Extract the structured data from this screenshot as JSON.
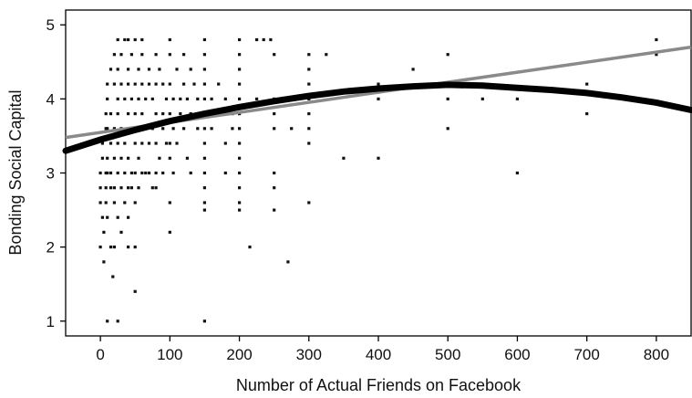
{
  "chart_data": {
    "type": "scatter",
    "title": "",
    "xlabel": "Number of Actual Friends on Facebook",
    "ylabel": "Bonding Social Capital",
    "xlim": [
      -50,
      850
    ],
    "ylim": [
      0.8,
      5.2
    ],
    "xticks": [
      0,
      100,
      200,
      300,
      400,
      500,
      600,
      700,
      800
    ],
    "yticks": [
      1,
      2,
      3,
      4,
      5
    ],
    "grid": false,
    "legend": "none",
    "colors": {
      "points": "#111111",
      "linear_fit": "#8a8a8a",
      "curve_fit": "#000000"
    },
    "series": [
      {
        "type": "scatter",
        "points": [
          [
            0,
            3.0
          ],
          [
            0,
            2.8
          ],
          [
            0,
            2.6
          ],
          [
            0,
            2.0
          ],
          [
            3,
            3.4
          ],
          [
            3,
            3.2
          ],
          [
            3,
            2.4
          ],
          [
            5,
            1.8
          ],
          [
            5,
            2.2
          ],
          [
            8,
            3.8
          ],
          [
            8,
            3.6
          ],
          [
            8,
            3.0
          ],
          [
            8,
            2.8
          ],
          [
            8,
            2.6
          ],
          [
            10,
            4.2
          ],
          [
            10,
            4.0
          ],
          [
            10,
            3.6
          ],
          [
            10,
            3.2
          ],
          [
            10,
            3.0
          ],
          [
            10,
            2.4
          ],
          [
            10,
            1.0
          ],
          [
            15,
            4.4
          ],
          [
            15,
            3.8
          ],
          [
            15,
            3.4
          ],
          [
            15,
            3.0
          ],
          [
            15,
            2.8
          ],
          [
            15,
            2.0
          ],
          [
            18,
            1.6
          ],
          [
            20,
            4.6
          ],
          [
            20,
            4.2
          ],
          [
            20,
            3.6
          ],
          [
            20,
            3.2
          ],
          [
            20,
            2.8
          ],
          [
            20,
            2.6
          ],
          [
            20,
            2.0
          ],
          [
            25,
            4.8
          ],
          [
            25,
            4.4
          ],
          [
            25,
            4.0
          ],
          [
            25,
            3.8
          ],
          [
            25,
            3.4
          ],
          [
            25,
            3.0
          ],
          [
            25,
            2.4
          ],
          [
            25,
            1.0
          ],
          [
            30,
            4.6
          ],
          [
            30,
            4.2
          ],
          [
            30,
            3.6
          ],
          [
            30,
            3.2
          ],
          [
            30,
            2.8
          ],
          [
            30,
            2.2
          ],
          [
            35,
            4.8
          ],
          [
            35,
            4.0
          ],
          [
            35,
            3.4
          ],
          [
            35,
            3.0
          ],
          [
            35,
            2.6
          ],
          [
            40,
            4.8
          ],
          [
            40,
            4.4
          ],
          [
            40,
            4.2
          ],
          [
            40,
            3.8
          ],
          [
            40,
            3.2
          ],
          [
            40,
            2.8
          ],
          [
            40,
            2.4
          ],
          [
            40,
            2.0
          ],
          [
            45,
            4.6
          ],
          [
            45,
            4.0
          ],
          [
            45,
            3.6
          ],
          [
            45,
            3.0
          ],
          [
            45,
            2.8
          ],
          [
            50,
            4.8
          ],
          [
            50,
            4.2
          ],
          [
            50,
            3.8
          ],
          [
            50,
            3.4
          ],
          [
            50,
            3.0
          ],
          [
            50,
            2.6
          ],
          [
            50,
            2.0
          ],
          [
            50,
            1.4
          ],
          [
            55,
            4.4
          ],
          [
            55,
            4.0
          ],
          [
            55,
            3.6
          ],
          [
            55,
            3.2
          ],
          [
            55,
            2.8
          ],
          [
            60,
            4.8
          ],
          [
            60,
            4.6
          ],
          [
            60,
            4.2
          ],
          [
            60,
            3.8
          ],
          [
            60,
            3.4
          ],
          [
            60,
            3.0
          ],
          [
            65,
            4.0
          ],
          [
            65,
            3.6
          ],
          [
            65,
            3.0
          ],
          [
            70,
            4.4
          ],
          [
            70,
            4.2
          ],
          [
            70,
            3.4
          ],
          [
            70,
            3.0
          ],
          [
            75,
            4.0
          ],
          [
            75,
            3.6
          ],
          [
            75,
            2.8
          ],
          [
            80,
            4.6
          ],
          [
            80,
            4.2
          ],
          [
            80,
            3.8
          ],
          [
            80,
            3.4
          ],
          [
            80,
            3.0
          ],
          [
            80,
            2.8
          ],
          [
            85,
            4.4
          ],
          [
            85,
            3.2
          ],
          [
            90,
            4.2
          ],
          [
            90,
            3.8
          ],
          [
            90,
            3.6
          ],
          [
            90,
            3.0
          ],
          [
            95,
            4.0
          ],
          [
            95,
            3.4
          ],
          [
            100,
            4.8
          ],
          [
            100,
            4.6
          ],
          [
            100,
            4.2
          ],
          [
            100,
            3.8
          ],
          [
            100,
            3.4
          ],
          [
            100,
            3.2
          ],
          [
            100,
            2.6
          ],
          [
            100,
            2.2
          ],
          [
            105,
            4.0
          ],
          [
            105,
            3.6
          ],
          [
            105,
            3.0
          ],
          [
            110,
            4.4
          ],
          [
            110,
            3.4
          ],
          [
            115,
            4.0
          ],
          [
            115,
            3.8
          ],
          [
            120,
            4.6
          ],
          [
            120,
            4.2
          ],
          [
            120,
            3.6
          ],
          [
            125,
            4.0
          ],
          [
            125,
            3.2
          ],
          [
            130,
            4.4
          ],
          [
            130,
            3.8
          ],
          [
            130,
            3.0
          ],
          [
            135,
            4.2
          ],
          [
            140,
            4.0
          ],
          [
            140,
            3.6
          ],
          [
            150,
            4.8
          ],
          [
            150,
            4.6
          ],
          [
            150,
            4.4
          ],
          [
            150,
            4.2
          ],
          [
            150,
            4.0
          ],
          [
            150,
            3.8
          ],
          [
            150,
            3.6
          ],
          [
            150,
            3.4
          ],
          [
            150,
            3.2
          ],
          [
            150,
            3.0
          ],
          [
            150,
            2.8
          ],
          [
            150,
            2.6
          ],
          [
            150,
            2.5
          ],
          [
            150,
            1.0
          ],
          [
            160,
            4.0
          ],
          [
            160,
            3.6
          ],
          [
            170,
            4.2
          ],
          [
            170,
            3.8
          ],
          [
            180,
            4.0
          ],
          [
            180,
            3.4
          ],
          [
            180,
            3.0
          ],
          [
            190,
            3.8
          ],
          [
            190,
            3.6
          ],
          [
            200,
            4.8
          ],
          [
            200,
            4.6
          ],
          [
            200,
            4.4
          ],
          [
            200,
            4.2
          ],
          [
            200,
            4.0
          ],
          [
            200,
            3.8
          ],
          [
            200,
            3.6
          ],
          [
            200,
            3.4
          ],
          [
            200,
            3.2
          ],
          [
            200,
            3.0
          ],
          [
            200,
            2.8
          ],
          [
            200,
            2.6
          ],
          [
            200,
            2.5
          ],
          [
            215,
            2.0
          ],
          [
            225,
            4.8
          ],
          [
            225,
            4.0
          ],
          [
            235,
            4.8
          ],
          [
            245,
            4.8
          ],
          [
            250,
            4.6
          ],
          [
            250,
            4.0
          ],
          [
            250,
            3.8
          ],
          [
            250,
            3.6
          ],
          [
            250,
            3.0
          ],
          [
            250,
            2.8
          ],
          [
            250,
            2.5
          ],
          [
            270,
            1.8
          ],
          [
            275,
            3.6
          ],
          [
            300,
            4.6
          ],
          [
            300,
            4.4
          ],
          [
            300,
            4.2
          ],
          [
            300,
            4.0
          ],
          [
            300,
            3.8
          ],
          [
            300,
            3.6
          ],
          [
            300,
            3.4
          ],
          [
            300,
            2.6
          ],
          [
            325,
            4.6
          ],
          [
            350,
            3.2
          ],
          [
            400,
            4.2
          ],
          [
            400,
            4.0
          ],
          [
            400,
            3.2
          ],
          [
            450,
            4.4
          ],
          [
            500,
            4.6
          ],
          [
            500,
            4.0
          ],
          [
            500,
            3.6
          ],
          [
            550,
            4.0
          ],
          [
            600,
            4.0
          ],
          [
            600,
            3.0
          ],
          [
            700,
            4.2
          ],
          [
            700,
            3.8
          ],
          [
            800,
            4.8
          ],
          [
            800,
            4.6
          ]
        ]
      },
      {
        "type": "line",
        "fit": "linear",
        "x": [
          -50,
          850
        ],
        "y": [
          3.48,
          4.7
        ]
      },
      {
        "type": "line",
        "fit": "quadratic",
        "x": [
          -50,
          0,
          50,
          100,
          150,
          200,
          250,
          300,
          350,
          400,
          450,
          500,
          550,
          600,
          650,
          700,
          750,
          800,
          850
        ],
        "y": [
          3.3,
          3.45,
          3.58,
          3.7,
          3.8,
          3.89,
          3.97,
          4.04,
          4.1,
          4.14,
          4.17,
          4.19,
          4.18,
          4.15,
          4.12,
          4.08,
          4.02,
          3.95,
          3.85
        ]
      }
    ]
  }
}
